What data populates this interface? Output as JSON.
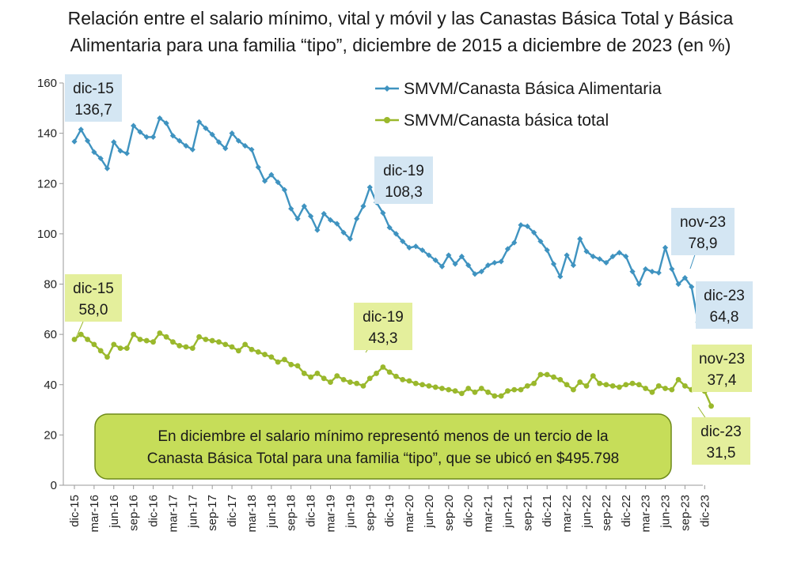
{
  "title_lines": [
    "Relación entre el salario mínimo, vital y móvil y las Canastas Básica Total y Básica",
    "Alimentaria para una familia “tipo”, diciembre de 2015 a diciembre de 2023 (en %)"
  ],
  "colors": {
    "cba": "#3f93c0",
    "cbt": "#9ab82c",
    "cba_label_bg": "#d4e6f3",
    "cbt_label_bg": "#e4ef9c",
    "note_bg": "#c6dd59",
    "note_border": "#6e8a1a"
  },
  "note": {
    "lines": [
      "En diciembre el salario mínimo representó menos de un tercio de la",
      "Canasta Básica Total para una familia “tipo”, que se ubicó en $495.798"
    ]
  },
  "chart_data": {
    "type": "line",
    "title": "Relación entre el salario mínimo, vital y móvil y las Canastas Básica Total y Básica Alimentaria para una familia “tipo”, diciembre de 2015 a diciembre de 2023 (en %)",
    "ylim": [
      0,
      160
    ],
    "yticks": [
      0,
      20,
      40,
      60,
      80,
      100,
      120,
      140,
      160
    ],
    "grid": false,
    "legend_position": "top-right",
    "x_tick_labels": [
      "dic-15",
      "mar-16",
      "jun-16",
      "sep-16",
      "dic-16",
      "mar-17",
      "jun-17",
      "sep-17",
      "dic-17",
      "mar-18",
      "jun-18",
      "sep-18",
      "dic-18",
      "mar-19",
      "jun-19",
      "sep-19",
      "dic-19",
      "mar-20",
      "jun-20",
      "sep-20",
      "dic-20",
      "mar-21",
      "jun-21",
      "sep-21",
      "dic-21",
      "mar-22",
      "jun-22",
      "sep-22",
      "dic-22",
      "mar-23",
      "jun-23",
      "sep-23",
      "dic-23"
    ],
    "x_start": "dic-15",
    "x_end": "dic-23",
    "series": [
      {
        "name": "SMVM/Canasta Básica Alimentaria",
        "color": "#3f93c0",
        "values": [
          136.7,
          141.5,
          137,
          132.5,
          130,
          126,
          136.5,
          133,
          132,
          143,
          140.5,
          138.5,
          138.5,
          146,
          144,
          139,
          137,
          135,
          133.5,
          144.5,
          142,
          139.5,
          136.5,
          134,
          140,
          137,
          135,
          133.5,
          126.5,
          121,
          123.5,
          120.5,
          117.5,
          110,
          106,
          111,
          107,
          101.5,
          108,
          105.5,
          104,
          100.5,
          98,
          106,
          111,
          118.5,
          112.5,
          108.3,
          102.5,
          100,
          97,
          94.5,
          95,
          93.5,
          91.5,
          89.5,
          87,
          91.5,
          88,
          91,
          87.5,
          84,
          85,
          87.5,
          88.5,
          89,
          94,
          96.5,
          103.5,
          103,
          100.5,
          97,
          93.5,
          88,
          83,
          91.5,
          87.5,
          98,
          93,
          91,
          90,
          88.5,
          91,
          92.5,
          91,
          85,
          80,
          86,
          85,
          84.5,
          94.5,
          86,
          80,
          82.5,
          78.9,
          64.8
        ]
      },
      {
        "name": "SMVM/Canasta básica total",
        "color": "#9ab82c",
        "values": [
          58.0,
          60,
          58,
          56,
          53.5,
          51,
          56,
          54.5,
          54.5,
          60,
          58,
          57.5,
          57,
          60.5,
          59,
          57,
          55.5,
          55,
          54.5,
          59,
          58,
          57.5,
          57,
          56,
          55,
          53.5,
          56,
          54,
          53,
          52,
          51,
          49,
          50,
          48,
          47.5,
          44.5,
          43,
          44.5,
          42.5,
          41,
          43.5,
          42,
          41,
          40.5,
          39.5,
          42.5,
          44.5,
          47,
          45,
          43.3,
          42,
          41.5,
          40.5,
          40,
          39.5,
          39,
          38.5,
          38,
          37.5,
          36.5,
          38.5,
          37,
          38.5,
          37,
          35.5,
          35.5,
          37.5,
          38,
          38,
          39.5,
          40.5,
          44,
          44,
          43,
          42,
          40,
          38,
          41,
          39.5,
          43.5,
          40.5,
          40,
          39.5,
          39,
          40,
          40.5,
          40,
          38.5,
          37,
          39.5,
          38.5,
          38,
          42,
          39.5,
          38,
          39,
          37.4,
          31.5
        ]
      }
    ],
    "annotations": [
      {
        "series": 0,
        "label": "dic-15",
        "value": "136,7"
      },
      {
        "series": 0,
        "label": "dic-19",
        "value": "108,3"
      },
      {
        "series": 0,
        "label": "nov-23",
        "value": "78,9"
      },
      {
        "series": 0,
        "label": "dic-23",
        "value": "64,8"
      },
      {
        "series": 1,
        "label": "dic-15",
        "value": "58,0"
      },
      {
        "series": 1,
        "label": "dic-19",
        "value": "43,3"
      },
      {
        "series": 1,
        "label": "nov-23",
        "value": "37,4"
      },
      {
        "series": 1,
        "label": "dic-23",
        "value": "31,5"
      }
    ]
  }
}
